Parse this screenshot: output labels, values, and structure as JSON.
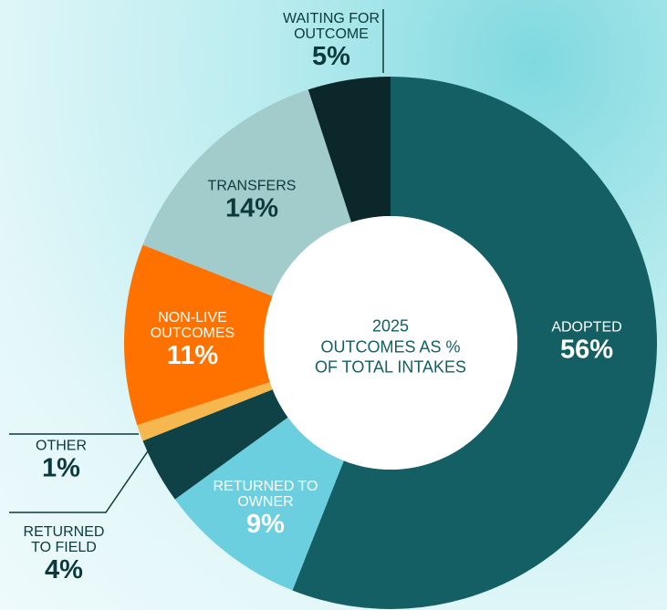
{
  "chart_data": {
    "type": "donut",
    "center_label": "2025\nOUTCOMES AS %\nOF TOTAL INTAKES",
    "categories": [
      "ADOPTED",
      "RETURNED TO\nOWNER",
      "RETURNED\nTO FIELD",
      "OTHER",
      "NON-LIVE\nOUTCOMES",
      "TRANSFERS",
      "WAITING FOR\nOUTCOME"
    ],
    "values": [
      56,
      9,
      4,
      1,
      11,
      14,
      5
    ],
    "value_labels": [
      "56%",
      "9%",
      "4%",
      "1%",
      "11%",
      "14%",
      "5%"
    ],
    "colors": [
      "#135f63",
      "#6ccfe0",
      "#0e4247",
      "#f6b84e",
      "#ff7200",
      "#a2cbcb",
      "#0b2729"
    ]
  }
}
